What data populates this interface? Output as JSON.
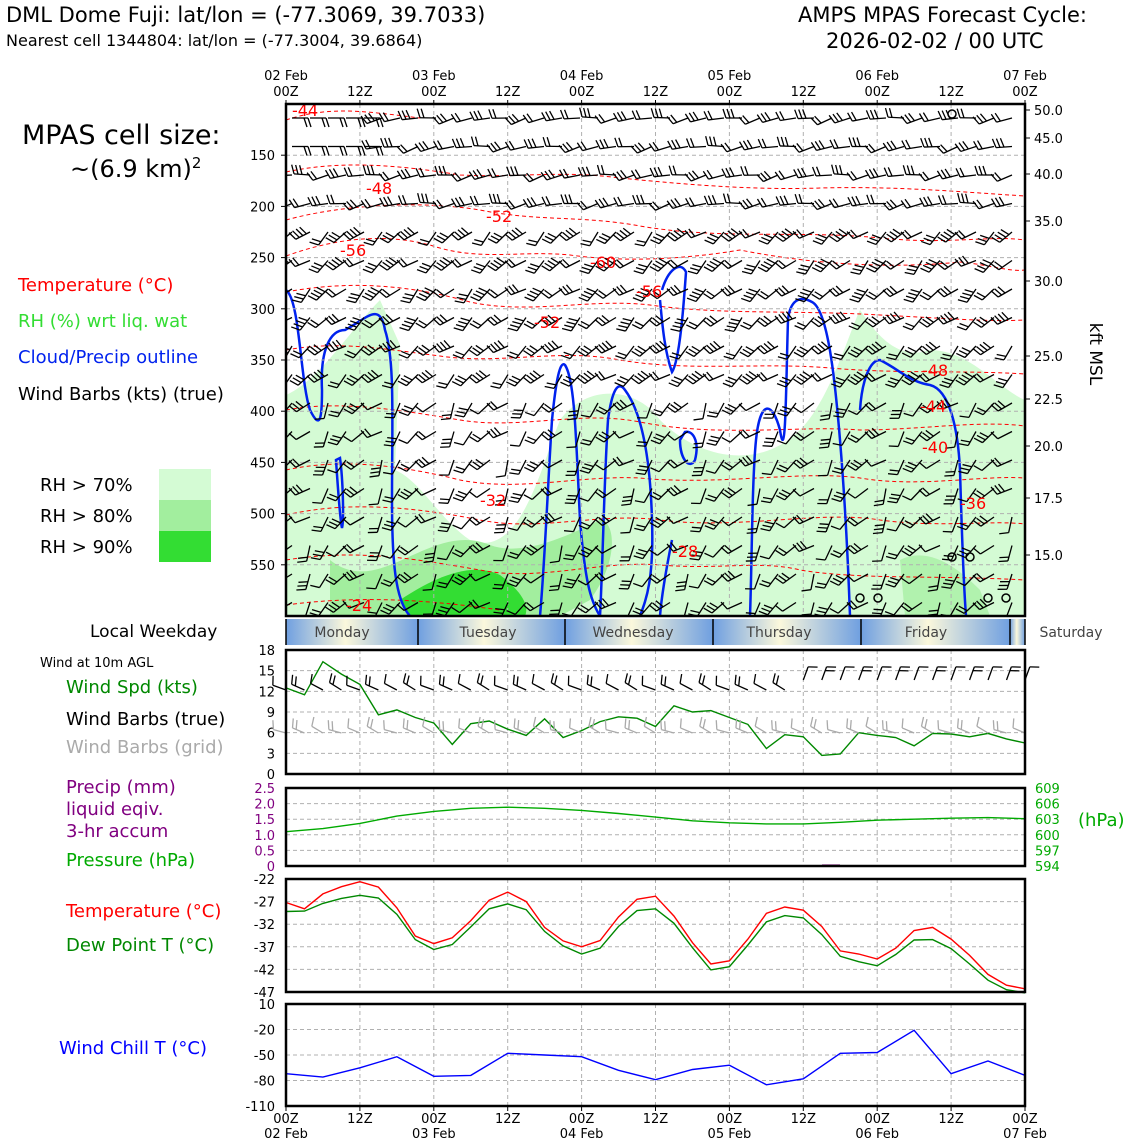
{
  "header": {
    "site": "DML Dome Fuji: lat/lon = (-77.3069, 39.7033)",
    "nearest_cell": "Nearest cell 1344804: lat/lon = (-77.3004, 39.6864)",
    "cycle_label": "AMPS MPAS Forecast Cycle:",
    "cycle_time": "2026-02-02 / 00 UTC",
    "cell_size_label": "MPAS cell size:",
    "cell_size_value": "~(6.9 km)",
    "cell_size_exp": "2"
  },
  "legend": {
    "temperature": "Temperature (°C)",
    "rh": "RH (%) wrt liq. wat",
    "cloud": "Cloud/Precip outline",
    "barbs": "Wind Barbs (kts) (true)",
    "rh70": "RH > 70%",
    "rh80": "RH > 80%",
    "rh90": "RH > 90%"
  },
  "colors": {
    "temp": "#ff0000",
    "rh_text": "#33dd33",
    "cloud": "#0022ee",
    "rh70": "#d4fbd4",
    "rh80": "#a2ee9e",
    "rh90": "#33dd33",
    "wind_spd": "#008800",
    "pressure": "#00aa00",
    "precip": "#800080",
    "dewpt": "#008800",
    "windchill": "#0000ff",
    "grid_barb": "#aaaaaa"
  },
  "chart_data": [
    {
      "type": "line",
      "name": "upper-air time-height cross section",
      "top_axis": {
        "dates": [
          "02 Feb",
          "03 Feb",
          "04 Feb",
          "05 Feb",
          "06 Feb",
          "07 Feb"
        ],
        "hours": [
          "00Z",
          "12Z",
          "00Z",
          "12Z",
          "00Z",
          "12Z",
          "00Z",
          "12Z",
          "00Z",
          "12Z",
          "00Z"
        ]
      },
      "y_pressure_ticks": [
        "150",
        "200",
        "250",
        "300",
        "350",
        "400",
        "450",
        "500",
        "550"
      ],
      "y_kft_ticks": [
        "50.0",
        "45.0",
        "40.0",
        "35.0",
        "30.0",
        "25.0",
        "22.5",
        "20.0",
        "17.5",
        "15.0"
      ],
      "y_right_label": "kft MSL",
      "ylim_hpa": [
        100,
        600
      ],
      "isotherm_labels": [
        "-44",
        "-48",
        "-52",
        "-56",
        "-60",
        "-56",
        "-52",
        "-48",
        "-44",
        "-40",
        "-36",
        "-32",
        "-28",
        "-24"
      ]
    },
    {
      "type": "table",
      "name": "local weekday bar",
      "label": "Local Weekday",
      "days": [
        "Monday",
        "Tuesday",
        "Wednesday",
        "Thursday",
        "Friday",
        "Saturday"
      ]
    },
    {
      "type": "line",
      "name": "10m wind",
      "title": "Wind at 10m AGL",
      "series_label": "Wind Spd (kts)",
      "barbs_true_label": "Wind Barbs (true)",
      "barbs_grid_label": "Wind Barbs (grid)",
      "yticks": [
        "0",
        "3",
        "6",
        "9",
        "12",
        "15",
        "18"
      ],
      "ylim": [
        0,
        18
      ],
      "x_hours": [
        0,
        3,
        6,
        9,
        12,
        15,
        18,
        21,
        24,
        27,
        30,
        33,
        36,
        39,
        42,
        45,
        48,
        51,
        54,
        57,
        60,
        63,
        66,
        69,
        72,
        75,
        78,
        81,
        84,
        87,
        90,
        93,
        96,
        99,
        102,
        105,
        108,
        111,
        114,
        117,
        120
      ],
      "values": [
        12.5,
        11.5,
        16.3,
        14.5,
        13.0,
        8.6,
        9.3,
        8.2,
        7.4,
        4.3,
        7.3,
        7.7,
        6.5,
        5.6,
        8.0,
        5.3,
        6.3,
        7.6,
        8.3,
        8.1,
        6.9,
        9.9,
        9.0,
        9.2,
        8.2,
        7.2,
        3.7,
        5.7,
        5.4,
        2.7,
        2.9,
        6.0,
        5.6,
        5.3,
        4.1,
        5.9,
        5.8,
        5.4,
        5.9,
        5.1,
        4.5
      ]
    },
    {
      "type": "line",
      "name": "precip and pressure",
      "precip_label_1": "Precip (mm)",
      "precip_label_2": "liquid eqiv.",
      "precip_label_3": "3-hr accum",
      "pressure_label": "Pressure (hPa)",
      "right_unit": "(hPa)",
      "precip_ticks": [
        "0",
        "0.5",
        "1.0",
        "1.5",
        "2.0",
        "2.5"
      ],
      "pressure_ticks": [
        "594",
        "597",
        "600",
        "603",
        "606",
        "609"
      ],
      "ylim_pressure": [
        594,
        609
      ],
      "x_hours": [
        0,
        6,
        12,
        18,
        24,
        30,
        36,
        42,
        48,
        54,
        60,
        66,
        72,
        78,
        84,
        90,
        96,
        102,
        108,
        114,
        120
      ],
      "values": [
        600.6,
        601.2,
        602.2,
        603.6,
        604.5,
        605.1,
        605.3,
        605.1,
        604.7,
        604.1,
        603.4,
        602.7,
        602.3,
        602.1,
        602.1,
        602.4,
        602.8,
        603.0,
        603.2,
        603.3,
        603.1
      ],
      "precip_values": [
        {
          "hour": 88.5,
          "mm": 0.05
        }
      ]
    },
    {
      "type": "line",
      "name": "temperature and dew point",
      "temp_label": "Temperature (°C)",
      "dew_label": "Dew Point T (°C)",
      "yticks": [
        "-22",
        "-27",
        "-32",
        "-37",
        "-42",
        "-47"
      ],
      "ylim": [
        -47,
        -22
      ],
      "x_hours": [
        0,
        3,
        6,
        9,
        12,
        15,
        18,
        21,
        24,
        27,
        30,
        33,
        36,
        39,
        42,
        45,
        48,
        51,
        54,
        57,
        60,
        63,
        66,
        69,
        72,
        75,
        78,
        81,
        84,
        87,
        90,
        93,
        96,
        99,
        102,
        105,
        108,
        111,
        114,
        117,
        120
      ],
      "series": [
        {
          "name": "Temperature",
          "values": [
            -27.2,
            -28.6,
            -25.3,
            -23.7,
            -22.6,
            -23.8,
            -28.4,
            -34.6,
            -36.3,
            -35.0,
            -31.2,
            -26.7,
            -24.9,
            -27.0,
            -32.7,
            -35.7,
            -37.0,
            -35.6,
            -30.4,
            -26.5,
            -25.8,
            -30.2,
            -36.1,
            -40.8,
            -40.1,
            -35.3,
            -29.6,
            -28.2,
            -28.9,
            -32.5,
            -37.9,
            -38.6,
            -39.7,
            -37.3,
            -33.4,
            -32.7,
            -35.3,
            -38.9,
            -43.1,
            -45.5,
            -46.3
          ]
        },
        {
          "name": "Dew Point",
          "values": [
            -29.2,
            -29.1,
            -27.4,
            -26.3,
            -25.6,
            -26.2,
            -29.8,
            -35.4,
            -37.6,
            -36.5,
            -32.6,
            -28.6,
            -27.5,
            -28.8,
            -33.6,
            -36.8,
            -38.6,
            -37.3,
            -32.5,
            -29.0,
            -28.6,
            -31.8,
            -37.2,
            -42.1,
            -41.4,
            -36.6,
            -31.5,
            -30.1,
            -30.6,
            -34.3,
            -39.1,
            -40.3,
            -41.2,
            -38.7,
            -35.5,
            -35.4,
            -37.4,
            -40.8,
            -44.4,
            -46.5,
            -47.2
          ]
        }
      ]
    },
    {
      "type": "line",
      "name": "wind chill",
      "series_label": "Wind Chill T (°C)",
      "yticks": [
        "10",
        "-20",
        "-50",
        "-80",
        "-110"
      ],
      "ylim": [
        -110,
        10
      ],
      "x_hours": [
        0,
        6,
        12,
        18,
        24,
        30,
        36,
        42,
        48,
        54,
        60,
        66,
        72,
        78,
        84,
        90,
        96,
        102,
        108,
        114,
        120
      ],
      "values": [
        -72,
        -76,
        -65,
        -52,
        -75,
        -74,
        -48,
        -50,
        -52,
        -68,
        -79,
        -67,
        -62,
        -85,
        -78,
        -48,
        -47,
        -21,
        -72,
        -57,
        -74
      ]
    },
    {
      "type": "table",
      "name": "bottom time axis",
      "dates": [
        "02 Feb",
        "03 Feb",
        "04 Feb",
        "05 Feb",
        "06 Feb",
        "07 Feb"
      ],
      "hours": [
        "00Z",
        "12Z",
        "00Z",
        "12Z",
        "00Z",
        "12Z",
        "00Z",
        "12Z",
        "00Z",
        "12Z",
        "00Z"
      ]
    }
  ]
}
